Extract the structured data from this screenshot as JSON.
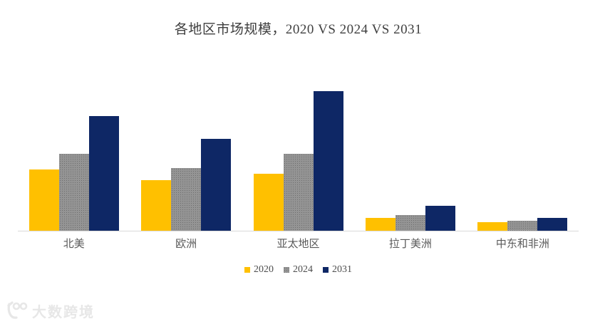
{
  "title": "各地区市场规模，2020 VS 2024 VS 2031",
  "chart_data": {
    "type": "bar",
    "title": "各地区市场规模，2020 VS 2024 VS 2031",
    "categories": [
      "北美",
      "欧洲",
      "亚太地区",
      "拉丁美洲",
      "中东和非洲"
    ],
    "series": [
      {
        "name": "2020",
        "color": "#FFC000",
        "pattern": "solid",
        "values": [
          44,
          36,
          41,
          9,
          6
        ]
      },
      {
        "name": "2024",
        "color": "#949494",
        "pattern": "dots",
        "values": [
          55,
          45,
          55,
          11,
          7
        ]
      },
      {
        "name": "2031",
        "color": "#0E2765",
        "pattern": "solid",
        "values": [
          82,
          66,
          100,
          18,
          9
        ]
      }
    ],
    "xlabel": "",
    "ylabel": "",
    "ylim": [
      0,
      100
    ],
    "value_units": "relative (no value axis shown; tallest bar normalized to 100)",
    "grid": false,
    "value_axis_visible": false,
    "legend_position": "bottom",
    "axis_line_color": "#d9d9d9"
  },
  "legend_labels": [
    "2020",
    "2024",
    "2031"
  ],
  "watermark": {
    "text": "大数跨境"
  }
}
